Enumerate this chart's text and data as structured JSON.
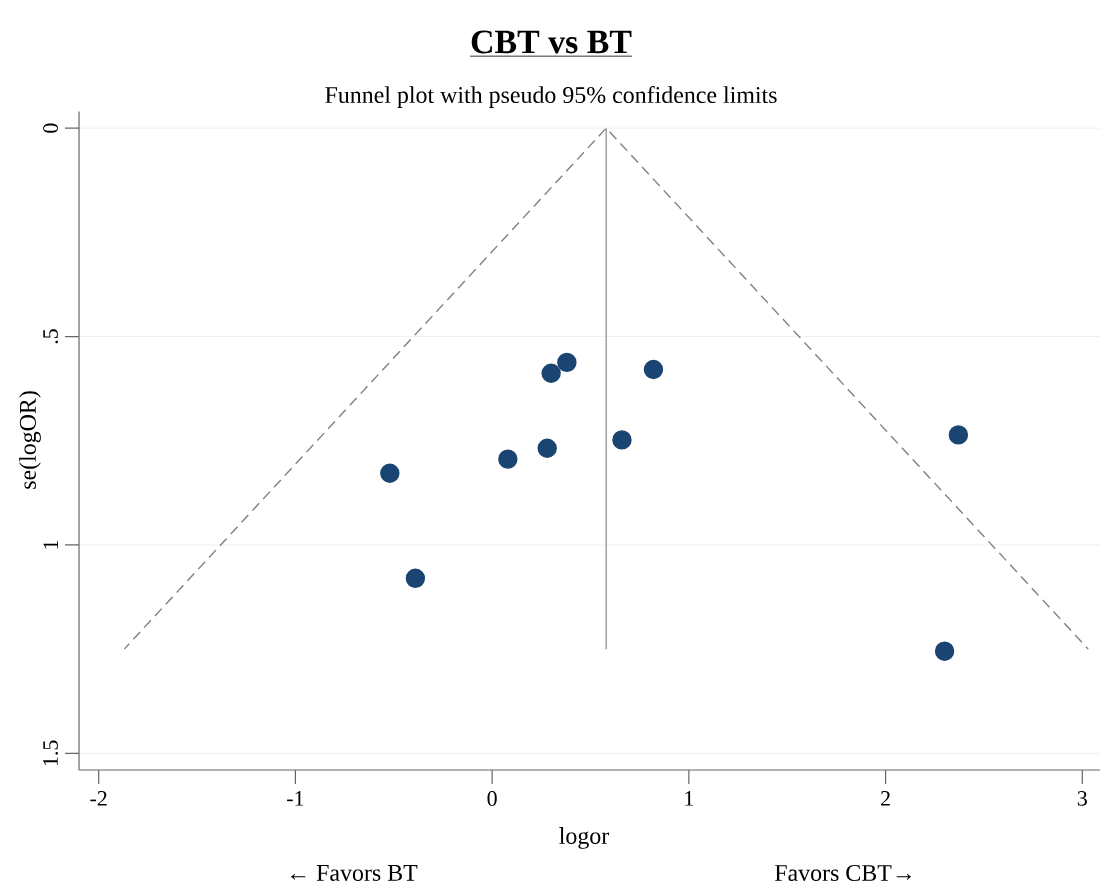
{
  "chart_data": {
    "type": "scatter",
    "title": "CBT vs BT",
    "subtitle": "Funnel plot with pseudo 95% confidence limits",
    "xlabel": "logor",
    "ylabel": "se(logOR)",
    "annotations": [
      "← Favors BT",
      "Favors CBT→"
    ],
    "xlim": [
      -2.1,
      3.09
    ],
    "ylim": [
      1.54,
      -0.04
    ],
    "xticks": [
      -2,
      -1,
      0,
      1,
      2,
      3
    ],
    "yticks": [
      0,
      {
        "value": 0.5,
        "label": ".5"
      },
      1,
      1.5
    ],
    "grid": "y",
    "series": [
      {
        "color": "#1a4472",
        "marker": "circle",
        "x": [
          0.38,
          0.3,
          0.82,
          0.66,
          0.28,
          0.08,
          -0.52,
          -0.39,
          2.37,
          2.3
        ],
        "values": [
          0.562,
          0.588,
          0.579,
          0.748,
          0.768,
          0.794,
          0.828,
          1.08,
          0.736,
          1.255
        ]
      },
      {
        "type": "line",
        "color": "#808080",
        "marker": "none",
        "line_style": "dashed",
        "x": [
          -1.87,
          0.58,
          3.03
        ],
        "values": [
          1.25,
          0,
          1.25
        ]
      },
      {
        "type": "line",
        "color": "#999999",
        "marker": "none",
        "line_style": "solid",
        "x": [
          0.58,
          0.58
        ],
        "values": [
          0,
          1.25
        ]
      }
    ]
  }
}
